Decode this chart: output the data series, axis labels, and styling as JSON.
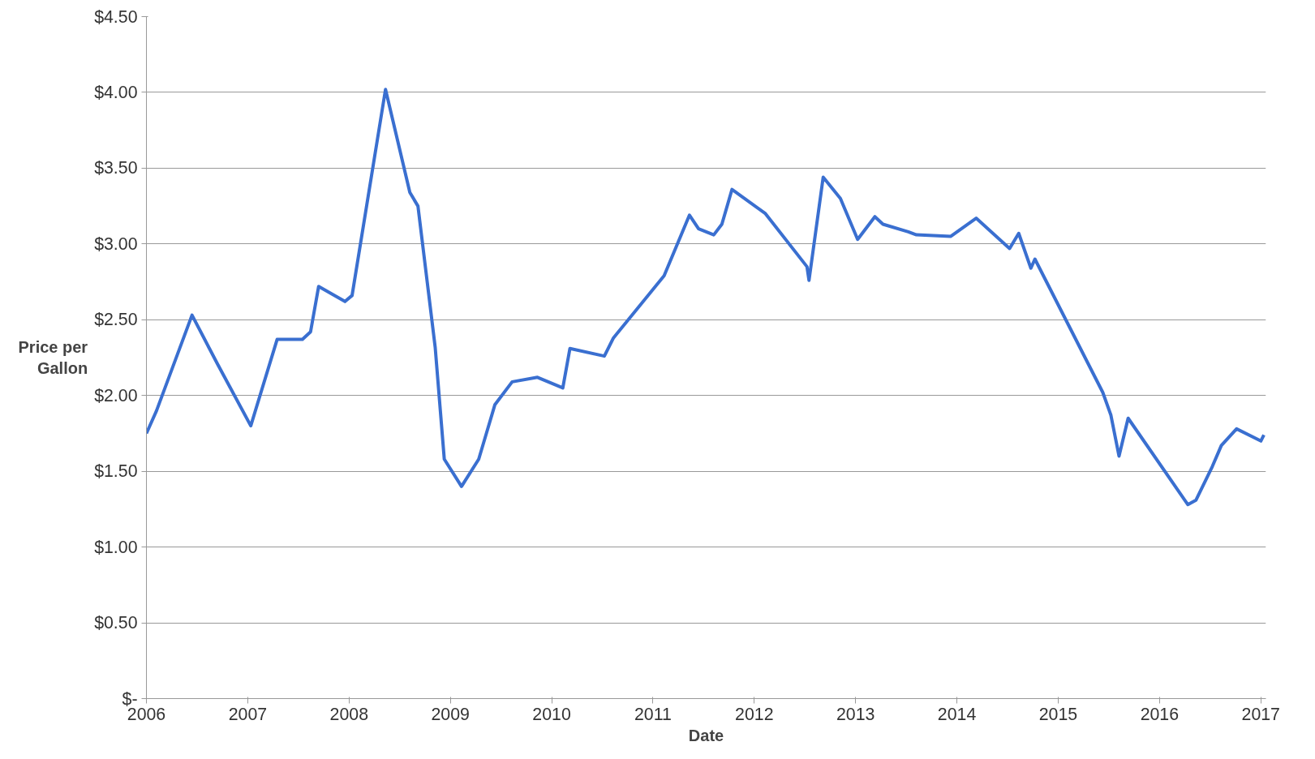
{
  "chart_data": {
    "type": "line",
    "xlabel": "Date",
    "ylabel": "Price per Gallon",
    "xlim": [
      2006,
      2017.05
    ],
    "xticks": [
      2006,
      2007,
      2008,
      2009,
      2010,
      2011,
      2012,
      2013,
      2014,
      2015,
      2016,
      2017
    ],
    "ylim": [
      0,
      4.5
    ],
    "yticks": [
      {
        "value": 0,
        "label": "$-"
      },
      {
        "value": 0.5,
        "label": "$0.50"
      },
      {
        "value": 1,
        "label": "$1.00"
      },
      {
        "value": 1.5,
        "label": "$1.50"
      },
      {
        "value": 2,
        "label": "$2.00"
      },
      {
        "value": 2.5,
        "label": "$2.50"
      },
      {
        "value": 3,
        "label": "$3.00"
      },
      {
        "value": 3.5,
        "label": "$3.50"
      },
      {
        "value": 4,
        "label": "$4.00"
      },
      {
        "value": 4.5,
        "label": "$4.50"
      }
    ],
    "grid": "y",
    "line_style": "solid",
    "series": [
      {
        "color": "#3a6fd0",
        "x": [
          2006.0,
          2006.1,
          2006.45,
          2006.7,
          2007.03,
          2007.29,
          2007.54,
          2007.62,
          2007.7,
          2007.96,
          2008.03,
          2008.36,
          2008.6,
          2008.68,
          2008.85,
          2008.94,
          2009.11,
          2009.28,
          2009.44,
          2009.61,
          2009.86,
          2010.11,
          2010.18,
          2010.52,
          2010.61,
          2011.11,
          2011.36,
          2011.45,
          2011.6,
          2011.68,
          2011.78,
          2012.11,
          2012.52,
          2012.54,
          2012.68,
          2012.85,
          2013.02,
          2013.19,
          2013.27,
          2013.52,
          2013.6,
          2013.94,
          2014.19,
          2014.52,
          2014.61,
          2014.73,
          2014.77,
          2015.44,
          2015.52,
          2015.6,
          2015.69,
          2016.28,
          2016.36,
          2016.52,
          2016.61,
          2016.76,
          2017.0,
          2017.03
        ],
        "values": [
          1.75,
          1.9,
          2.53,
          2.21,
          1.8,
          2.37,
          2.37,
          2.42,
          2.72,
          2.62,
          2.66,
          4.02,
          3.34,
          3.25,
          2.32,
          1.58,
          1.4,
          1.58,
          1.94,
          2.09,
          2.12,
          2.05,
          2.31,
          2.26,
          2.38,
          2.79,
          3.19,
          3.1,
          3.06,
          3.13,
          3.36,
          3.2,
          2.85,
          2.76,
          3.44,
          3.3,
          3.03,
          3.18,
          3.13,
          3.08,
          3.06,
          3.05,
          3.17,
          2.97,
          3.07,
          2.84,
          2.9,
          2.02,
          1.87,
          1.6,
          1.85,
          1.28,
          1.31,
          1.53,
          1.67,
          1.78,
          1.7,
          1.74
        ]
      }
    ]
  }
}
